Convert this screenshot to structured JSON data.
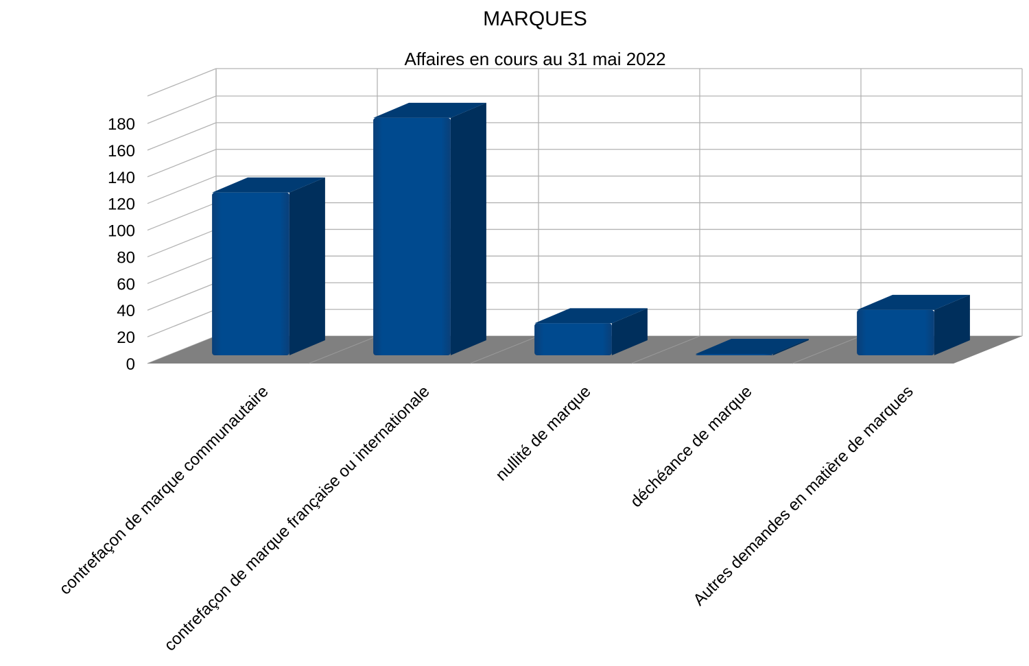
{
  "chart_data": {
    "type": "bar",
    "title": "MARQUES",
    "subtitle": "Affaires en cours au 31 mai 2022",
    "categories": [
      "contrefaçon de marque communautaire",
      "contrefaçon de marque française ou internationale",
      "nullité de marque",
      "déchéance de marque",
      "Autres demandes en matière de marques"
    ],
    "series": [
      {
        "values": [
          122,
          178,
          24,
          1,
          34
        ]
      }
    ],
    "ylim": [
      0,
      180
    ],
    "yticks": [
      "0",
      "20",
      "40",
      "60",
      "80",
      "100",
      "120",
      "140",
      "160",
      "180"
    ],
    "grid": true,
    "legend": "none",
    "style": "3d",
    "colors": {
      "bar_front": "#004a8f",
      "bar_side": "#002f5c",
      "bar_top": "#003b73",
      "floor": "#808080",
      "grid": "#b3b3b3"
    }
  }
}
